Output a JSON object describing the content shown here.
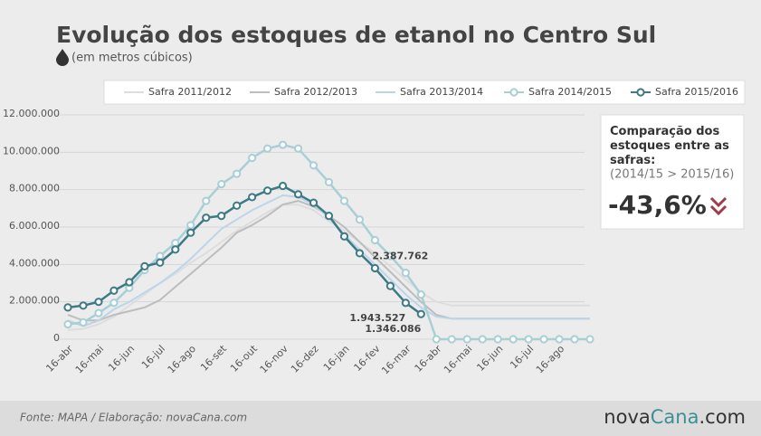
{
  "chart_data": {
    "type": "line",
    "title": "Evolução dos estoques de etanol no Centro Sul",
    "subtitle": "(em metros cúbicos)",
    "categories": [
      "16-abr",
      null,
      "16-mai",
      null,
      "16-jun",
      null,
      "16-jul",
      null,
      "16-ago",
      null,
      "16-set",
      null,
      "16-out",
      null,
      "16-nov",
      null,
      "16-dez",
      null,
      "16-jan",
      null,
      "16-fev",
      null,
      "16-mar",
      null,
      "16-abr",
      null,
      "16-mai",
      null,
      "16-jun",
      null,
      "16-jul",
      null,
      "16-ago",
      null,
      null
    ],
    "ylim": [
      0,
      12000000
    ],
    "yticks": [
      0,
      {
        "value": 2000000,
        "label": "2.000.000"
      },
      {
        "value": 4000000,
        "label": "4.000.000"
      },
      {
        "value": 6000000,
        "label": "6.000.000"
      },
      {
        "value": 8000000,
        "label": "8.000.000"
      },
      {
        "value": 10000000,
        "label": "10.000.000"
      },
      {
        "value": 12000000,
        "label": "12.000.000"
      }
    ],
    "grid": true,
    "series": [
      {
        "name": "Safra 2011/2012",
        "color": "#dddddd",
        "markers": false,
        "values": [
          500000,
          550000,
          800000,
          1200000,
          1800000,
          2400000,
          3000000,
          3500000,
          4100000,
          4600000,
          5200000,
          5800000,
          6300000,
          6800000,
          7200000,
          7200000,
          6900000,
          6300000,
          5800000,
          5200000,
          4600000,
          3900000,
          3200000,
          2500000,
          2000000,
          1800000,
          1800000,
          1800000,
          1800000,
          1800000,
          1800000,
          1800000,
          1800000,
          1800000,
          1800000
        ]
      },
      {
        "name": "Safra 2012/2013",
        "color": "#bdbdbd",
        "markers": false,
        "values": [
          1300000,
          1000000,
          1000000,
          1300000,
          1500000,
          1700000,
          2100000,
          2800000,
          3500000,
          4200000,
          4900000,
          5700000,
          6100000,
          6600000,
          7200000,
          7400000,
          7100000,
          6600000,
          6000000,
          5200000,
          4400000,
          3600000,
          2800000,
          2000000,
          1300000,
          1100000,
          1100000,
          1100000,
          1100000,
          1100000,
          1100000,
          1100000,
          1100000,
          1100000,
          1100000
        ]
      },
      {
        "name": "Safra 2013/2014",
        "color": "#bcd5ea",
        "markers": false,
        "values": [
          1000000,
          700000,
          1000000,
          1600000,
          2000000,
          2500000,
          3000000,
          3600000,
          4300000,
          5100000,
          5900000,
          6400000,
          6900000,
          7300000,
          7700000,
          7600000,
          7200000,
          6500000,
          5600000,
          4800000,
          4000000,
          3200000,
          2400000,
          1700000,
          1200000,
          1100000,
          1100000,
          1100000,
          1100000,
          1100000,
          1100000,
          1100000,
          1100000,
          1100000,
          1100000
        ]
      },
      {
        "name": "Safra 2014/2015",
        "color": "#a9cfd6",
        "markers": true,
        "values": [
          800000,
          900000,
          1400000,
          1950000,
          2750000,
          3700000,
          4450000,
          5150000,
          6100000,
          7400000,
          8300000,
          8850000,
          9700000,
          10200000,
          10400000,
          10200000,
          9300000,
          8400000,
          7400000,
          6400000,
          5300000,
          4450000,
          3550000,
          2387762,
          0,
          0,
          0,
          0,
          0,
          0,
          0,
          0,
          0,
          0,
          0
        ],
        "value_labels": [
          null,
          null,
          null,
          null,
          null,
          null,
          null,
          null,
          null,
          null,
          null,
          null,
          null,
          null,
          null,
          null,
          null,
          null,
          null,
          null,
          null,
          null,
          null,
          "2.387.762",
          null,
          null,
          null,
          null,
          null,
          null,
          null,
          null,
          null,
          null,
          null
        ]
      },
      {
        "name": "Safra 2015/2016",
        "color": "#3d7a85",
        "markers": true,
        "values": [
          1700000,
          1800000,
          2000000,
          2600000,
          3050000,
          3900000,
          4100000,
          4800000,
          5700000,
          6500000,
          6600000,
          7150000,
          7600000,
          7950000,
          8200000,
          7750000,
          7300000,
          6600000,
          5500000,
          4600000,
          3800000,
          2850000,
          1943527,
          1346086,
          null,
          null,
          null,
          null,
          null,
          null,
          null,
          null,
          null,
          null,
          null
        ],
        "value_labels": [
          null,
          null,
          null,
          null,
          null,
          null,
          null,
          null,
          null,
          null,
          null,
          null,
          null,
          null,
          null,
          null,
          null,
          null,
          null,
          null,
          null,
          null,
          "1.943.527",
          "1.346.086",
          null,
          null,
          null,
          null,
          null,
          null,
          null,
          null,
          null,
          null,
          null
        ]
      }
    ],
    "comparison": {
      "title": "Comparação dos estoques entre as safras:",
      "subtitle": "(2014/15 > 2015/16)",
      "value_label": "-43,6%"
    },
    "source": "Fonte: MAPA  / Elaboração: novaCana.com",
    "logo": [
      "nova",
      "Cana",
      ".com"
    ]
  }
}
